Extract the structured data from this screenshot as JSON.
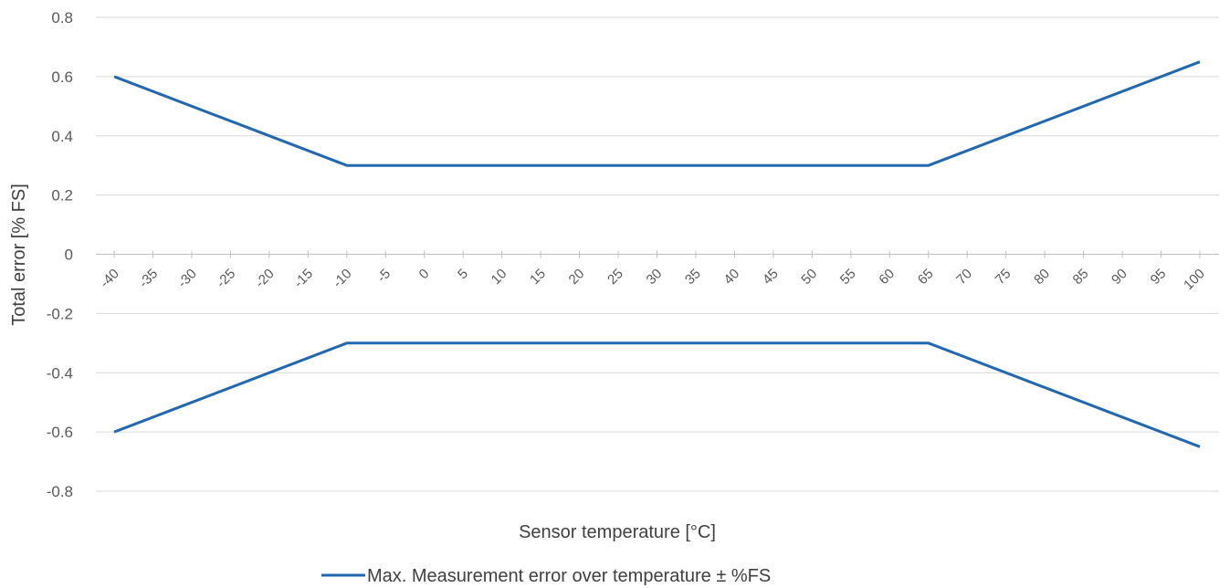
{
  "chart_data": {
    "type": "line",
    "xlabel": "Sensor temperature [°C]",
    "ylabel": "Total error [% FS]",
    "ylim": [
      -0.8,
      0.8
    ],
    "yticks": [
      0.8,
      0.6,
      0.4,
      0.2,
      0,
      -0.2,
      -0.4,
      -0.6,
      -0.8
    ],
    "ytick_labels": [
      "0.8",
      "0.6",
      "0.4",
      "0.2",
      "0",
      "-0.2",
      "-0.4",
      "-0.6",
      "-0.8"
    ],
    "xticks": [
      "-40",
      "-35",
      "-30",
      "-25",
      "-20",
      "-15",
      "-10",
      "-5",
      "0",
      "5",
      "10",
      "15",
      "20",
      "25",
      "30",
      "35",
      "40",
      "45",
      "50",
      "55",
      "60",
      "65",
      "70",
      "75",
      "80",
      "85",
      "90",
      "95",
      "100"
    ],
    "grid": true,
    "legend_position": "bottom",
    "legend_label": "Max. Measurement error over temperature ± %FS",
    "line_color": "#2268b0",
    "series": [
      {
        "role": "upper",
        "x": [
          -40,
          -10,
          65,
          100
        ],
        "y": [
          0.6,
          0.3,
          0.3,
          0.65
        ]
      },
      {
        "role": "lower",
        "x": [
          -40,
          -10,
          65,
          100
        ],
        "y": [
          -0.6,
          -0.3,
          -0.3,
          -0.65
        ]
      }
    ]
  }
}
